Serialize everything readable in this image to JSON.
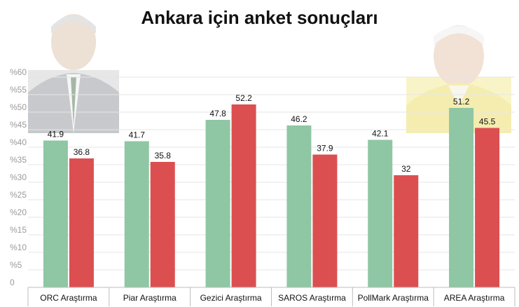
{
  "chart_data": {
    "type": "bar",
    "title": "Ankara için anket sonuçları",
    "categories": [
      "ORC Araştırma",
      "Piar Araştırma",
      "Gezici Araştırma",
      "SAROS Araştırma",
      "PollMark Araştırma",
      "AREA Araştırma"
    ],
    "series": [
      {
        "color": "#8fc6a4",
        "values": [
          41.9,
          41.7,
          47.8,
          46.2,
          42.1,
          51.2
        ]
      },
      {
        "color": "#dc4f50",
        "values": [
          36.8,
          35.8,
          52.2,
          37.9,
          32,
          45.5
        ]
      }
    ],
    "value_labels": [
      [
        "41.9",
        "41.7",
        "47.8",
        "46.2",
        "42.1",
        "51.2"
      ],
      [
        "36.8",
        "35.8",
        "52.2",
        "37.9",
        "32",
        "45.5"
      ]
    ],
    "y_ticks": [
      0,
      5,
      10,
      15,
      20,
      25,
      30,
      35,
      40,
      45,
      50,
      55,
      60
    ],
    "y_tick_labels": [
      "0",
      "%5",
      "%10",
      "%15",
      "%20",
      "%25",
      "%30",
      "%35",
      "%40",
      "%45",
      "%50",
      "%55",
      "%60"
    ],
    "ylim": [
      0,
      60
    ],
    "grid": true,
    "legend": "none"
  }
}
